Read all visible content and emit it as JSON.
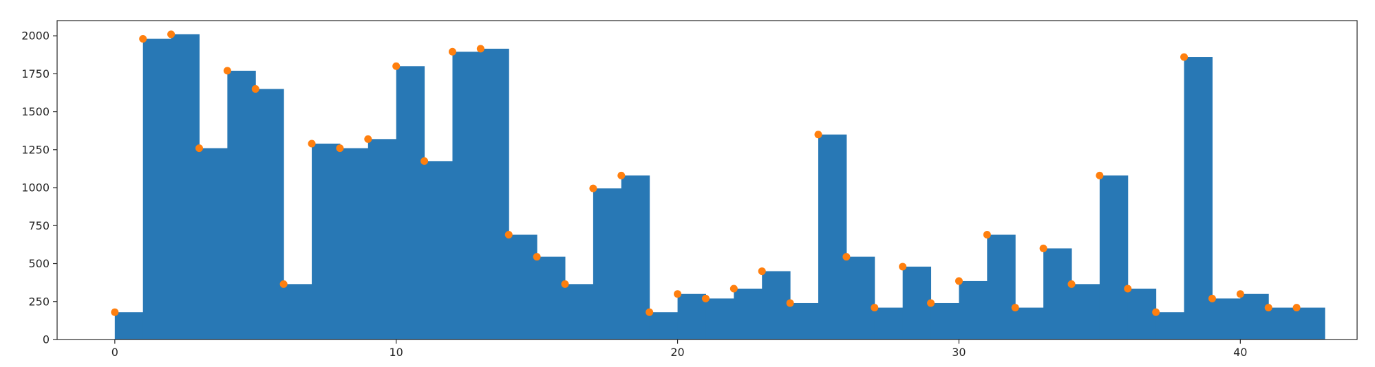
{
  "chart_data": {
    "type": "bar",
    "title": "",
    "xlabel": "",
    "ylabel": "",
    "bar_align": "edge",
    "bar_width": 1,
    "x": [
      0,
      1,
      2,
      3,
      4,
      5,
      6,
      7,
      8,
      9,
      10,
      11,
      12,
      13,
      14,
      15,
      16,
      17,
      18,
      19,
      20,
      21,
      22,
      23,
      24,
      25,
      26,
      27,
      28,
      29,
      30,
      31,
      32,
      33,
      34,
      35,
      36,
      37,
      38,
      39,
      40,
      41,
      42
    ],
    "values": [
      180,
      1980,
      2010,
      1260,
      1770,
      1650,
      365,
      1290,
      1260,
      1320,
      1800,
      1175,
      1895,
      1915,
      690,
      545,
      365,
      995,
      1080,
      180,
      300,
      270,
      335,
      450,
      240,
      1350,
      545,
      210,
      480,
      240,
      385,
      690,
      210,
      600,
      365,
      1080,
      335,
      180,
      1860,
      270,
      300,
      210,
      210
    ],
    "xlim": [
      -2.05,
      44.15
    ],
    "ylim": [
      0,
      2100
    ],
    "xticks": [
      0,
      10,
      20,
      30,
      40
    ],
    "xtick_labels": [
      "0",
      "10",
      "20",
      "30",
      "40"
    ],
    "yticks": [
      0,
      250,
      500,
      750,
      1000,
      1250,
      1500,
      1750,
      2000
    ],
    "ytick_labels": [
      "0",
      "250",
      "500",
      "750",
      "1000",
      "1250",
      "1500",
      "1750",
      "2000"
    ],
    "grid": false,
    "legend": "none",
    "series": [
      {
        "kind": "bar",
        "color": "#2878b5"
      },
      {
        "kind": "scatter",
        "color": "#ff7f0e"
      }
    ]
  }
}
